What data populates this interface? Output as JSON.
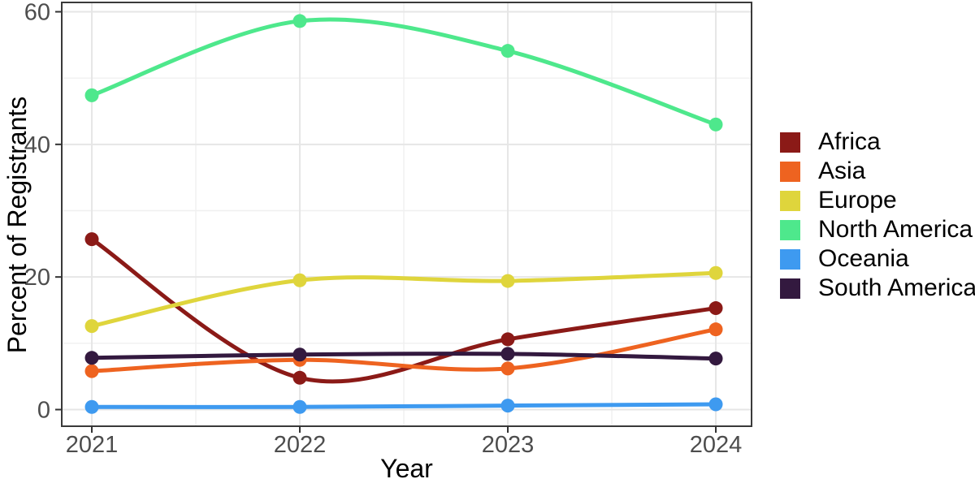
{
  "chart_data": {
    "type": "line",
    "title": "",
    "xlabel": "Year",
    "ylabel": "Percent of Registrants",
    "x_tick_labels": [
      "2021",
      "2022",
      "2023",
      "2024"
    ],
    "y_tick_labels": [
      "0",
      "20",
      "40",
      "60"
    ],
    "y_major_ticks": [
      0,
      20,
      40,
      60
    ],
    "y_minor_ticks": [
      10,
      30,
      50
    ],
    "ylim": [
      -2.5,
      61.4
    ],
    "grid": "major and minor gridlines, light gray on white",
    "legend_position": "right",
    "series": [
      {
        "name": "Africa",
        "color": "#8B1A17",
        "values": [
          25.7,
          4.8,
          10.6,
          15.3
        ]
      },
      {
        "name": "Asia",
        "color": "#EE6320",
        "values": [
          5.8,
          7.5,
          6.2,
          12.1
        ]
      },
      {
        "name": "Europe",
        "color": "#DFD53C",
        "values": [
          12.6,
          19.5,
          19.4,
          20.6
        ]
      },
      {
        "name": "North America",
        "color": "#4EE88C",
        "values": [
          47.4,
          58.6,
          54.1,
          43.0
        ]
      },
      {
        "name": "Oceania",
        "color": "#3E9AF0",
        "values": [
          0.4,
          0.4,
          0.6,
          0.8
        ]
      },
      {
        "name": "South America",
        "color": "#33193F",
        "values": [
          7.8,
          8.3,
          8.4,
          7.7
        ]
      }
    ],
    "style": {
      "background": "#FFFFFF",
      "panel_border_color": "#3A3A3A",
      "major_grid_color": "#E6E6E6",
      "minor_grid_color": "#F0F0F0",
      "tick_mark_color": "#333333",
      "tick_label_color": "#4D4D4D",
      "axis_title_color": "#000000",
      "legend_text_color": "#000000"
    }
  }
}
